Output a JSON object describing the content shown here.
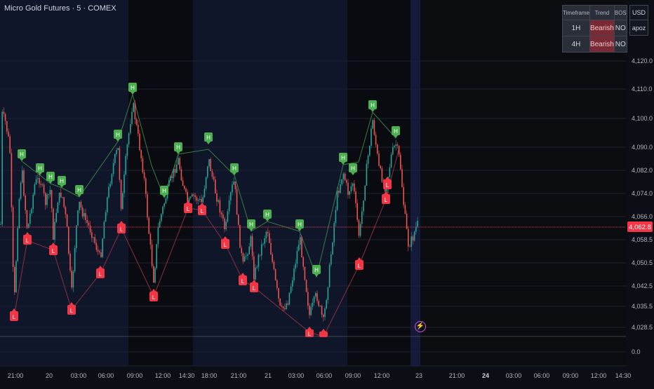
{
  "header": {
    "title": "Micro Gold Futures · 5 · COMEX"
  },
  "table": {
    "headers": [
      "Timeframe",
      "Trend",
      "BOS"
    ],
    "rows": [
      {
        "timeframe": "1H",
        "trend": "Bearish",
        "bos": "NO"
      },
      {
        "timeframe": "4H",
        "trend": "Bearish",
        "bos": "NO"
      }
    ]
  },
  "side": {
    "currency": "USD",
    "user": "apoz"
  },
  "price_axis": {
    "labels": [
      "4,120.0",
      "4,110.0",
      "4,100.0",
      "4,090.0",
      "4,082.0",
      "4,074.0",
      "4,066.0",
      "4,058.5",
      "4,050.5",
      "4,042.5",
      "4,035.5",
      "4,028.5",
      "0.0"
    ],
    "current_price": "4,062.8"
  },
  "time_axis": {
    "labels": [
      "21:00",
      "20",
      "03:00",
      "06:00",
      "09:00",
      "12:00",
      "14:30",
      "18:00",
      "21:00",
      "21",
      "03:00",
      "06:00",
      "09:00",
      "12:00",
      "23",
      "21:00",
      "24",
      "03:00",
      "06:00",
      "09:00",
      "12:00",
      "14:30"
    ],
    "bold": [
      false,
      false,
      false,
      false,
      false,
      false,
      false,
      false,
      false,
      false,
      false,
      false,
      false,
      false,
      false,
      false,
      true,
      false,
      false,
      false,
      false,
      false
    ]
  },
  "markers": {
    "high_label": "H",
    "low_label": "L"
  },
  "colors": {
    "bull": "#26a69a",
    "bear": "#ef5350",
    "high_marker": "#4caf50",
    "low_marker": "#f23645",
    "price_line": "#f23645"
  },
  "chart_data": {
    "type": "candlestick",
    "symbol": "Micro Gold Futures",
    "interval": "5",
    "exchange": "COMEX",
    "current_price": 4062.8,
    "swing_points": [
      {
        "type": "H",
        "price": 4089
      },
      {
        "type": "H",
        "price": 4083
      },
      {
        "type": "H",
        "price": 4081
      },
      {
        "type": "H",
        "price": 4079
      },
      {
        "type": "H",
        "price": 4075
      },
      {
        "type": "H",
        "price": 4106
      },
      {
        "type": "H",
        "price": 4099
      },
      {
        "type": "H",
        "price": 4089
      },
      {
        "type": "H",
        "price": 4092
      },
      {
        "type": "H",
        "price": 4084
      },
      {
        "type": "H",
        "price": 4076
      },
      {
        "type": "H",
        "price": 4067
      },
      {
        "type": "H",
        "price": 4069
      },
      {
        "type": "H",
        "price": 4067
      },
      {
        "type": "H",
        "price": 4089
      },
      {
        "type": "H",
        "price": 4086
      },
      {
        "type": "H",
        "price": 4103
      },
      {
        "type": "H",
        "price": 4096
      },
      {
        "type": "H",
        "price": 4049
      },
      {
        "type": "L",
        "price": 4033
      },
      {
        "type": "L",
        "price": 4060
      },
      {
        "type": "L",
        "price": 4056
      },
      {
        "type": "L",
        "price": 4049
      },
      {
        "type": "L",
        "price": 4038
      },
      {
        "type": "L",
        "price": 4065
      },
      {
        "type": "L",
        "price": 4043
      },
      {
        "type": "L",
        "price": 4068
      },
      {
        "type": "L",
        "price": 4067
      },
      {
        "type": "L",
        "price": 4059
      },
      {
        "type": "L",
        "price": 4047
      },
      {
        "type": "L",
        "price": 4045
      },
      {
        "type": "L",
        "price": 4028
      },
      {
        "type": "L",
        "price": 4028
      },
      {
        "type": "L",
        "price": 4054
      },
      {
        "type": "L",
        "price": 4073
      },
      {
        "type": "L",
        "price": 4070
      }
    ]
  }
}
